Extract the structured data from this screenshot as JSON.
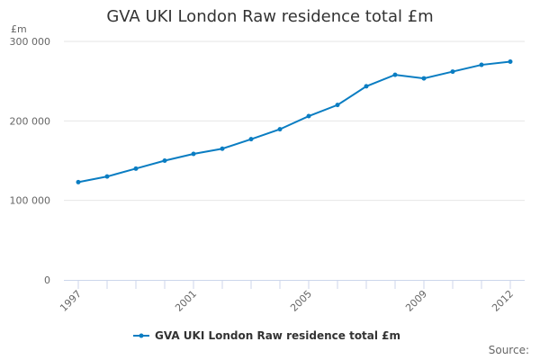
{
  "chart_data": {
    "type": "line",
    "title": "GVA UKI London Raw residence total £m",
    "ylabel": "£m",
    "xlabel": "",
    "x": [
      1997,
      1998,
      1999,
      2000,
      2001,
      2002,
      2003,
      2004,
      2005,
      2006,
      2007,
      2008,
      2009,
      2010,
      2011,
      2012
    ],
    "x_tick_labels": [
      "1997",
      "2001",
      "2005",
      "2009",
      "2012"
    ],
    "y_tick_labels": [
      "0",
      "100 000",
      "200 000",
      "300 000"
    ],
    "ylim": [
      0,
      300000
    ],
    "grid": true,
    "legend_placement": "bottom",
    "series": [
      {
        "name": "GVA UKI London Raw residence total £m",
        "color": "#0a7dc2",
        "values": [
          123000,
          130000,
          140000,
          150000,
          158500,
          165000,
          177000,
          189500,
          206000,
          220000,
          243500,
          258000,
          253500,
          262000,
          270500,
          274500
        ]
      }
    ]
  },
  "source_label": "Source:"
}
